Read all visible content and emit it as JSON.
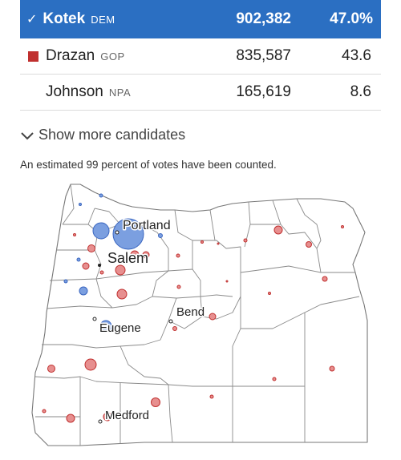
{
  "results": {
    "candidates": [
      {
        "name": "Kotek",
        "party": "DEM",
        "votes": "902,382",
        "pct": "47.0%",
        "winner": true,
        "color": "#2b6fc2"
      },
      {
        "name": "Drazan",
        "party": "GOP",
        "votes": "835,587",
        "pct": "43.6",
        "winner": false,
        "color": "#c0302f"
      },
      {
        "name": "Johnson",
        "party": "NPA",
        "votes": "165,619",
        "pct": "8.6",
        "winner": false,
        "color": ""
      }
    ],
    "check_glyph": "✓"
  },
  "show_more": {
    "label": "Show more candidates"
  },
  "note": "An estimated 99 percent of votes have been counted.",
  "map": {
    "cities": {
      "portland": "Portland",
      "salem": "Salem",
      "eugene": "Eugene",
      "bend": "Bend",
      "medford": "Medford"
    },
    "colors": {
      "dem": "#7b9fe0",
      "gop": "#e78f8f",
      "county_line": "#8a8a8a"
    }
  }
}
